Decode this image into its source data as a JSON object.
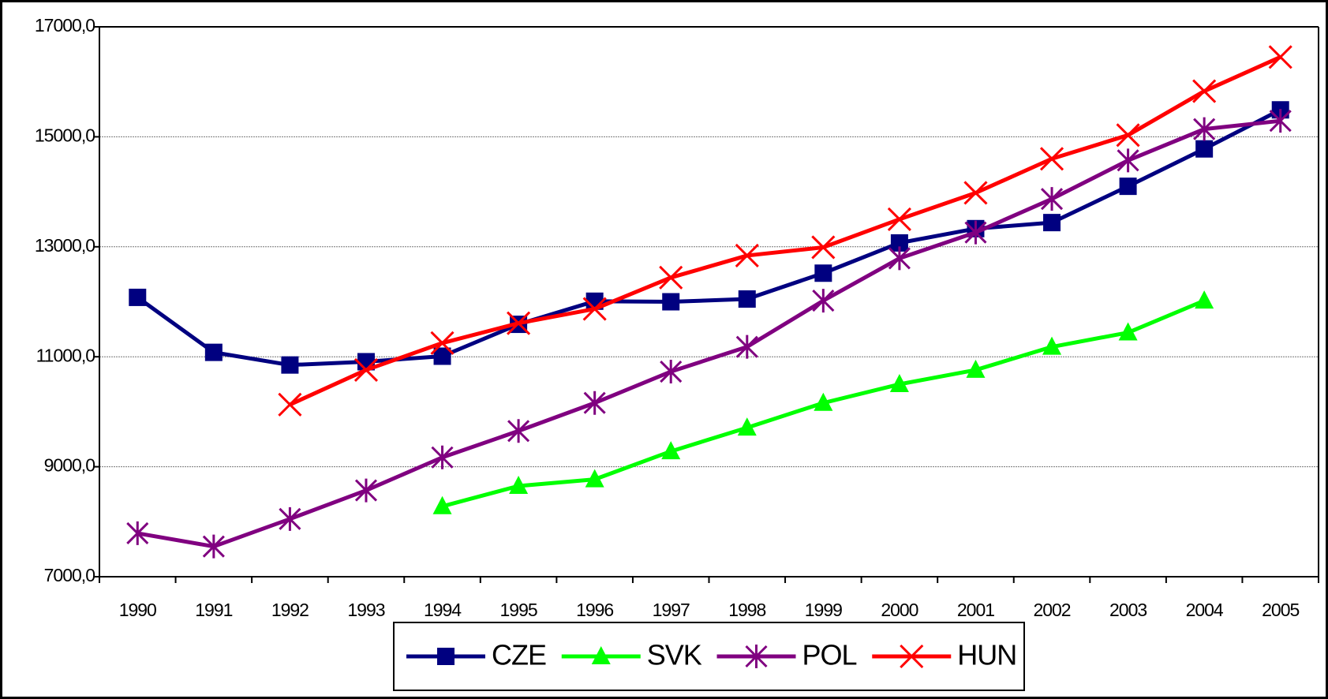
{
  "chart_data": {
    "type": "line",
    "categories": [
      "1990",
      "1991",
      "1992",
      "1993",
      "1994",
      "1995",
      "1996",
      "1997",
      "1998",
      "1999",
      "2000",
      "2001",
      "2002",
      "2003",
      "2004",
      "2005"
    ],
    "series": [
      {
        "name": "CZE",
        "color": "#000080",
        "marker": "square",
        "values": [
          12080,
          11080,
          10850,
          10910,
          11010,
          11590,
          12010,
          12000,
          12050,
          12520,
          13070,
          13330,
          13440,
          14100,
          14780,
          15490
        ]
      },
      {
        "name": "SVK",
        "color": "#00ff00",
        "marker": "triangle",
        "values": [
          null,
          null,
          null,
          null,
          8280,
          8650,
          8770,
          9280,
          9710,
          10160,
          10500,
          10760,
          11180,
          11440,
          12020,
          null
        ]
      },
      {
        "name": "POL",
        "color": "#800080",
        "marker": "asterisk",
        "values": [
          7790,
          7550,
          8050,
          8570,
          9170,
          9650,
          10160,
          10730,
          11180,
          12020,
          12790,
          13260,
          13870,
          14570,
          15140,
          15290
        ]
      },
      {
        "name": "HUN",
        "color": "#ff0000",
        "marker": "x",
        "values": [
          null,
          null,
          10130,
          10760,
          11250,
          11610,
          11870,
          12440,
          12840,
          12990,
          13500,
          13980,
          14600,
          15030,
          15830,
          16450
        ]
      }
    ],
    "ylim": [
      7000,
      17000
    ],
    "yticks": [
      {
        "value": 7000,
        "label": "7000,0"
      },
      {
        "value": 9000,
        "label": "9000,0"
      },
      {
        "value": 11000,
        "label": "11000,0"
      },
      {
        "value": 13000,
        "label": "13000,0"
      },
      {
        "value": 15000,
        "label": "15000,0"
      },
      {
        "value": 17000,
        "label": "17000,0"
      }
    ],
    "grid": true,
    "legend": "bottom"
  }
}
